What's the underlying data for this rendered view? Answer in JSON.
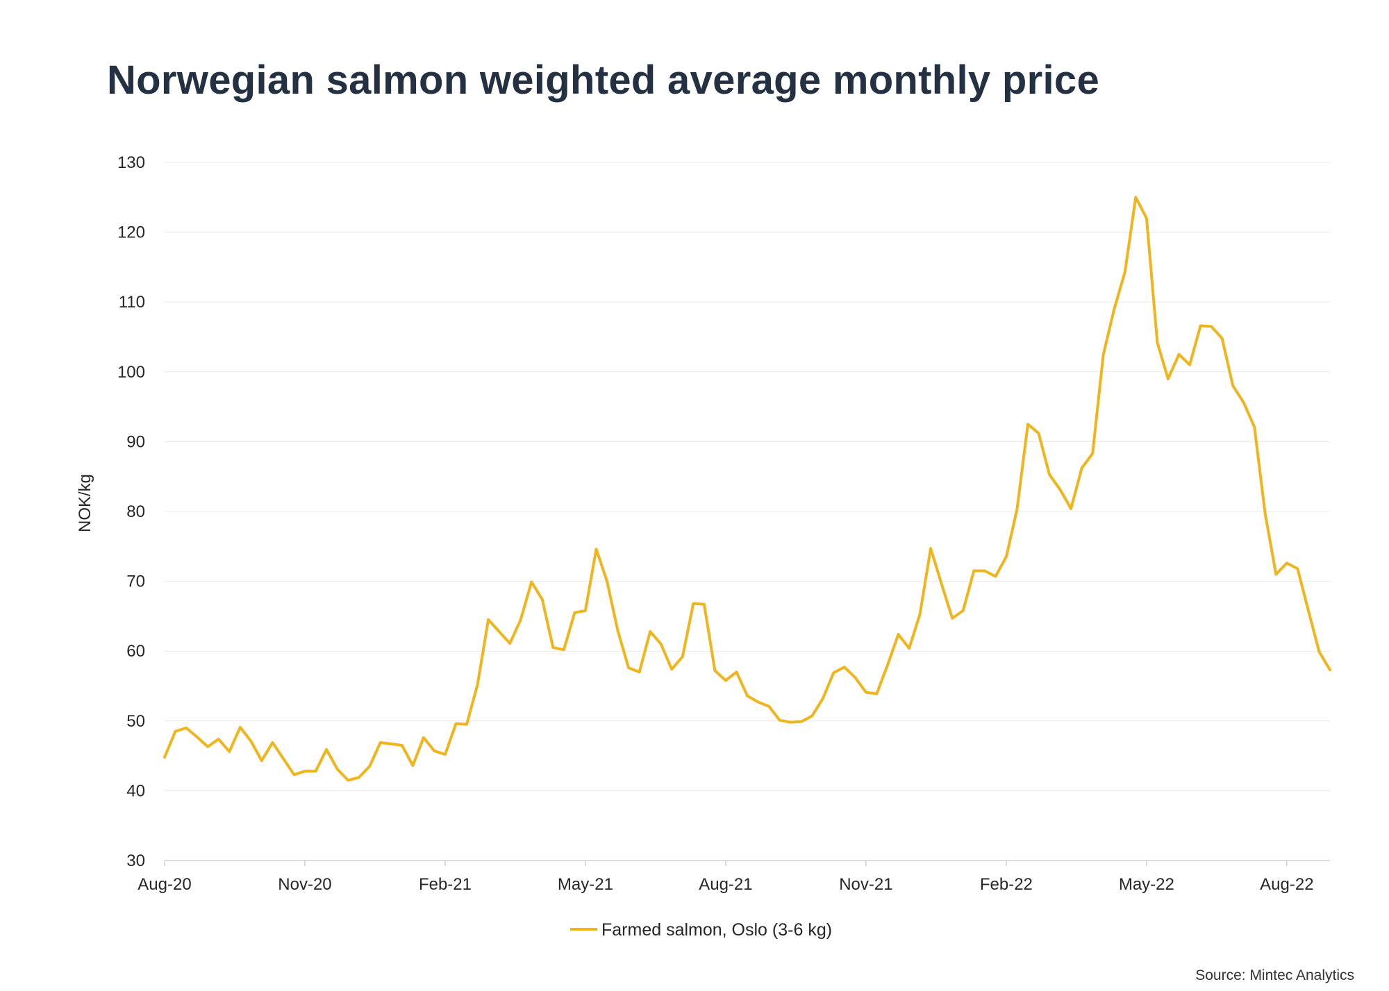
{
  "colors": {
    "series": "#F0B41C",
    "title": "#243142",
    "grid": "#E8E8E8"
  },
  "source": "Source: Mintec Analytics",
  "chart_data": {
    "type": "line",
    "title": "Norwegian salmon weighted average monthly price",
    "xlabel": "",
    "ylabel": "NOK/kg",
    "ylim": [
      30,
      130
    ],
    "yticks": [
      30,
      40,
      50,
      60,
      70,
      80,
      90,
      100,
      110,
      120,
      130
    ],
    "xtick_labels": [
      "Aug-20",
      "Nov-20",
      "Feb-21",
      "May-21",
      "Aug-21",
      "Nov-21",
      "Feb-22",
      "May-22",
      "Aug-22"
    ],
    "grid": true,
    "legend": "bottom",
    "series": [
      {
        "name": "Farmed salmon, Oslo (3-6 kg)",
        "values": [
          44.8,
          48.5,
          49.0,
          47.7,
          46.3,
          47.4,
          45.6,
          49.1,
          47.1,
          44.3,
          46.9,
          44.6,
          42.3,
          42.8,
          42.8,
          45.9,
          43.1,
          41.5,
          41.9,
          43.5,
          46.9,
          46.7,
          46.5,
          43.6,
          47.6,
          45.7,
          45.2,
          49.6,
          49.5,
          55.2,
          64.5,
          62.8,
          61.1,
          64.5,
          69.9,
          67.4,
          60.5,
          60.2,
          65.5,
          65.8,
          74.6,
          70.0,
          62.9,
          57.6,
          57.0,
          62.8,
          61.0,
          57.4,
          59.2,
          66.8,
          66.7,
          57.2,
          55.8,
          57.0,
          53.6,
          52.7,
          52.1,
          50.1,
          49.8,
          49.9,
          50.7,
          53.2,
          56.9,
          57.7,
          56.2,
          54.1,
          53.9,
          58.0,
          62.4,
          60.4,
          65.3,
          74.7,
          69.6,
          64.7,
          65.8,
          71.5,
          71.5,
          70.7,
          73.5,
          80.3,
          92.5,
          91.2,
          85.3,
          83.1,
          80.4,
          86.2,
          88.3,
          102.5,
          109.0,
          114.3,
          125.0,
          122.0,
          104.2,
          99.0,
          102.5,
          101.0,
          106.6,
          106.5,
          104.8,
          98.0,
          95.6,
          92.1,
          79.6,
          71.0,
          72.6,
          71.8,
          65.8,
          59.9,
          57.3
        ]
      }
    ]
  }
}
